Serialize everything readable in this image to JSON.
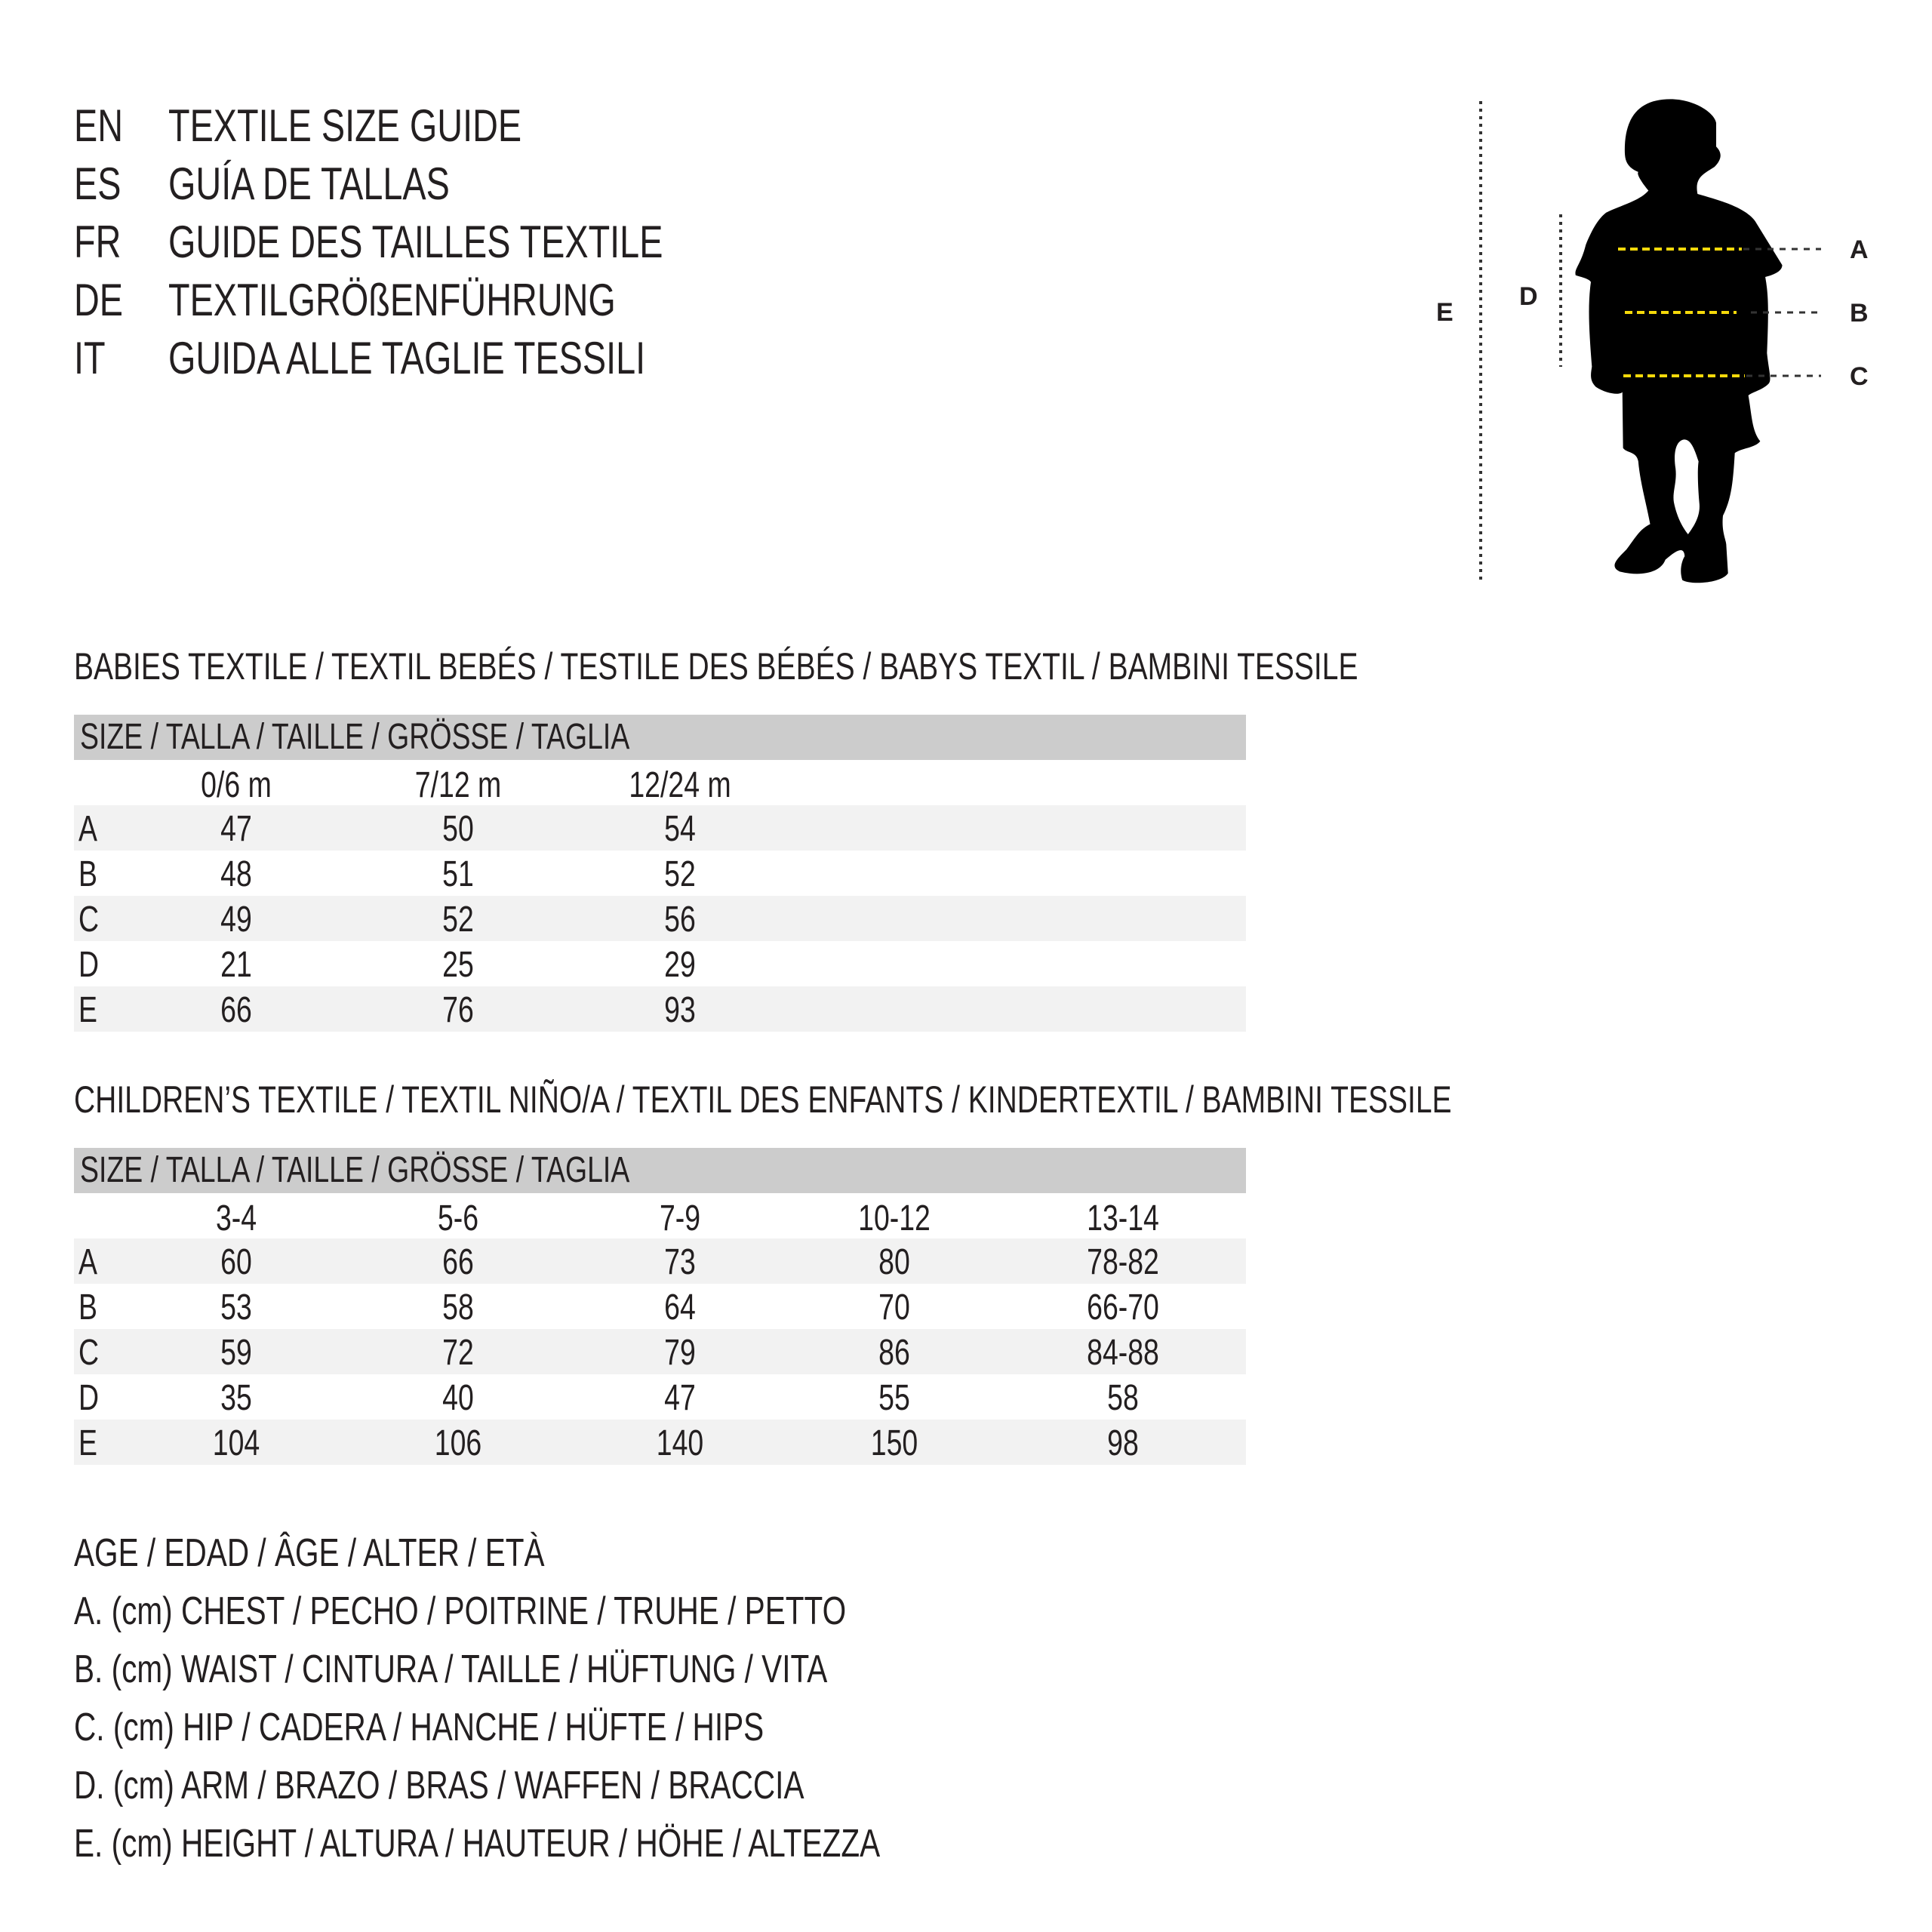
{
  "titles": [
    {
      "code": "EN",
      "text": "TEXTILE SIZE GUIDE"
    },
    {
      "code": "ES",
      "text": "GUÍA DE TALLAS"
    },
    {
      "code": "FR",
      "text": "GUIDE DES TAILLES TEXTILE"
    },
    {
      "code": "DE",
      "text": "TEXTILGRÖßENFÜHRUNG"
    },
    {
      "code": "IT",
      "text": "GUIDA ALLE TAGLIE TESSILI"
    }
  ],
  "babies": {
    "heading": "BABIES TEXTILE / TEXTIL BEBÉS / TESTILE DES BÉBÉS / BABYS TEXTIL / BAMBINI TESSILE",
    "size_header": "SIZE / TALLA / TAILLE / GRÖSSE / TAGLIA",
    "columns": [
      "0/6 m",
      "7/12 m",
      "12/24 m"
    ],
    "rows": [
      {
        "label": "A",
        "values": [
          "47",
          "50",
          "54"
        ]
      },
      {
        "label": "B",
        "values": [
          "48",
          "51",
          "52"
        ]
      },
      {
        "label": "C",
        "values": [
          "49",
          "52",
          "56"
        ]
      },
      {
        "label": "D",
        "values": [
          "21",
          "25",
          "29"
        ]
      },
      {
        "label": "E",
        "values": [
          "66",
          "76",
          "93"
        ]
      }
    ]
  },
  "children": {
    "heading": "CHILDREN’S TEXTILE / TEXTIL NIÑO/A / TEXTIL DES ENFANTS / KINDERTEXTIL / BAMBINI TESSILE",
    "size_header": "SIZE / TALLA / TAILLE / GRÖSSE / TAGLIA",
    "columns": [
      "3-4",
      "5-6",
      "7-9",
      "10-12",
      "13-14"
    ],
    "rows": [
      {
        "label": "A",
        "values": [
          "60",
          "66",
          "73",
          "80",
          "78-82"
        ]
      },
      {
        "label": "B",
        "values": [
          "53",
          "58",
          "64",
          "70",
          "66-70"
        ]
      },
      {
        "label": "C",
        "values": [
          "59",
          "72",
          "79",
          "86",
          "84-88"
        ]
      },
      {
        "label": "D",
        "values": [
          "35",
          "40",
          "47",
          "55",
          "58"
        ]
      },
      {
        "label": "E",
        "values": [
          "104",
          "106",
          "140",
          "150",
          "98"
        ]
      }
    ]
  },
  "legend": [
    "AGE / EDAD / ÂGE / ALTER / ETÀ",
    "A. (cm) CHEST / PECHO / POITRINE / TRUHE / PETTO",
    "B. (cm) WAIST / CINTURA / TAILLE / HÜFTUNG / VITA",
    "C. (cm) HIP / CADERA / HANCHE / HÜFTE / HIPS",
    "D. (cm) ARM / BRAZO / BRAS / WAFFEN / BRACCIA",
    "E. (cm) HEIGHT / ALTURA / HAUTEUR / HÖHE / ALTEZZA"
  ],
  "figure": {
    "labels": {
      "A": "A",
      "B": "B",
      "C": "C",
      "D": "D",
      "E": "E"
    },
    "icon": "child-silhouette-icon",
    "colors": {
      "silhouette": "#000000",
      "measure_line": "#f5d90a",
      "guide_line": "#333333"
    }
  }
}
